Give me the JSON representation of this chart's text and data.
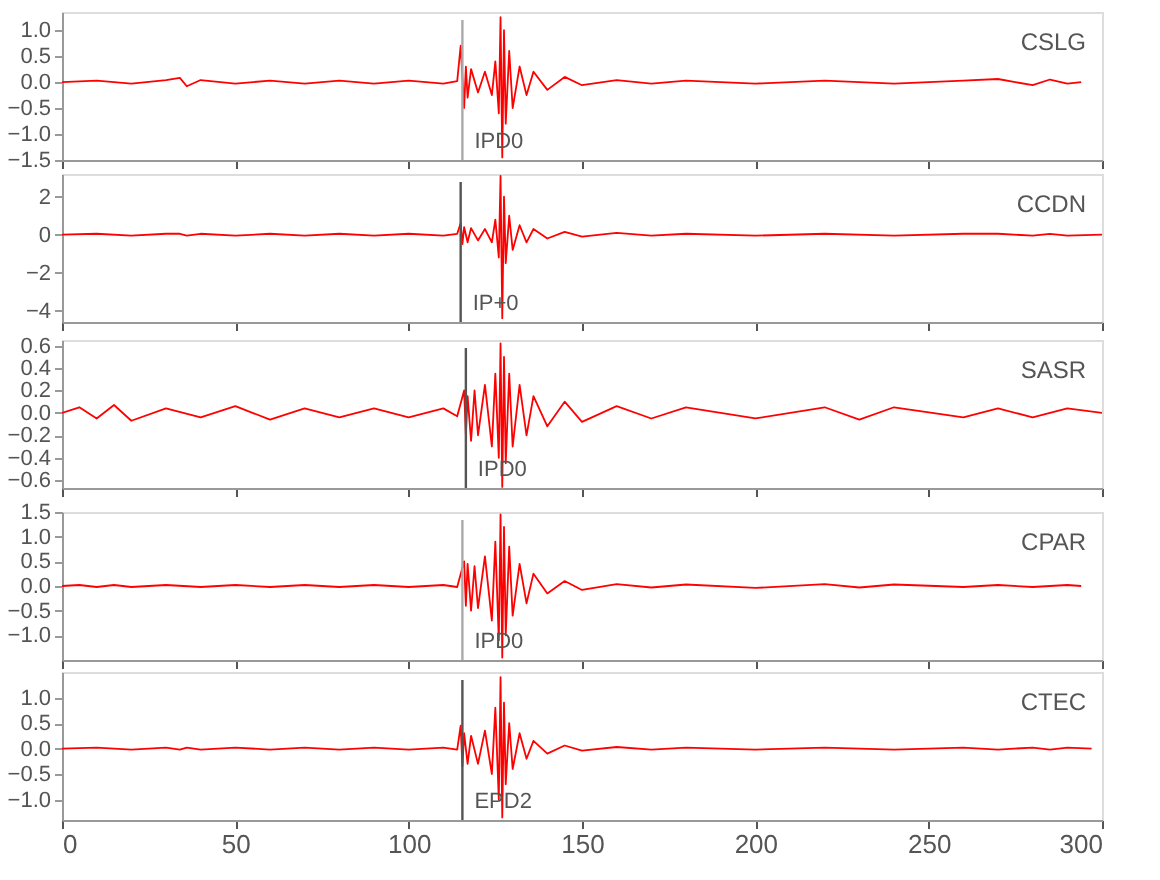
{
  "chart_data": [
    {
      "type": "line",
      "title": "CSLG",
      "xlim": [
        0,
        300
      ],
      "xticks": [
        0,
        50,
        100,
        150,
        200,
        250,
        300
      ],
      "ylim": [
        -1.5,
        1.35
      ],
      "yticks": [
        -1.5,
        {
          "value": -1,
          "label": "−1.0"
        },
        -0.5,
        {
          "value": 0,
          "label": "0.0"
        },
        0.5,
        {
          "value": 1,
          "label": "1.0"
        }
      ],
      "tick_labels": "y",
      "grid": false,
      "series": [
        {
          "color": "#ff0000",
          "x": [
            0,
            10,
            20,
            30,
            34,
            36,
            40,
            50,
            60,
            70,
            80,
            90,
            100,
            110,
            114,
            115,
            116,
            116.5,
            117,
            118,
            120,
            122,
            124,
            125,
            126,
            126.5,
            127,
            127.5,
            128,
            129,
            130,
            132,
            134,
            136,
            140,
            145,
            150,
            160,
            170,
            180,
            200,
            220,
            240,
            260,
            270,
            280,
            285,
            290,
            294
          ],
          "values": [
            0,
            0.03,
            -0.03,
            0.04,
            0.08,
            -0.08,
            0.04,
            -0.03,
            0.03,
            -0.03,
            0.03,
            -0.03,
            0.03,
            -0.03,
            0.02,
            0.7,
            -0.5,
            0.3,
            -0.3,
            0.25,
            -0.2,
            0.2,
            -0.25,
            0.4,
            -0.6,
            1.25,
            -1.45,
            1.0,
            -0.8,
            0.6,
            -0.5,
            0.3,
            -0.25,
            0.2,
            -0.15,
            0.1,
            -0.06,
            0.04,
            -0.03,
            0.03,
            -0.03,
            0.03,
            -0.03,
            0.03,
            0.06,
            -0.06,
            0.05,
            -0.03,
            0
          ]
        }
      ],
      "ref_lines": [
        {
          "axis": "x",
          "value": 115.5,
          "label": "IPD0",
          "color": "#aaaaaa"
        }
      ]
    },
    {
      "type": "line",
      "title": "CCDN",
      "xlim": [
        0,
        300
      ],
      "xticks": [
        0,
        50,
        100,
        150,
        200,
        250,
        300
      ],
      "ylim": [
        -4.6,
        3.2
      ],
      "yticks": [
        -4,
        -2,
        0,
        2
      ],
      "tick_labels": "y",
      "grid": false,
      "series": [
        {
          "color": "#ff0000",
          "x": [
            0,
            10,
            20,
            30,
            34,
            36,
            40,
            50,
            60,
            70,
            80,
            90,
            100,
            110,
            114,
            115,
            115.5,
            116,
            117,
            118,
            120,
            122,
            124,
            125,
            126,
            126.5,
            127,
            127.5,
            128,
            129,
            130,
            132,
            134,
            136,
            140,
            145,
            150,
            160,
            170,
            180,
            200,
            220,
            240,
            260,
            270,
            280,
            285,
            290,
            300
          ],
          "values": [
            0,
            0.05,
            -0.05,
            0.05,
            0.05,
            -0.05,
            0.05,
            -0.05,
            0.05,
            -0.05,
            0.05,
            -0.05,
            0.05,
            -0.05,
            0.05,
            0.6,
            -0.5,
            0.4,
            -0.4,
            0.35,
            -0.3,
            0.3,
            -0.4,
            0.8,
            -1.2,
            3.1,
            -4.4,
            2.0,
            -1.5,
            1.0,
            -0.8,
            0.5,
            -0.4,
            0.3,
            -0.2,
            0.15,
            -0.1,
            0.1,
            -0.05,
            0.05,
            -0.05,
            0.05,
            -0.05,
            0.05,
            0.05,
            -0.05,
            0.05,
            -0.05,
            0
          ]
        }
      ],
      "ref_lines": [
        {
          "axis": "x",
          "value": 115,
          "label": "IP+0",
          "color": "#555555"
        }
      ]
    },
    {
      "type": "line",
      "title": "SASR",
      "xlim": [
        0,
        300
      ],
      "xticks": [
        0,
        50,
        100,
        150,
        200,
        250,
        300
      ],
      "ylim": [
        -0.67,
        0.65
      ],
      "yticks": [
        -0.6,
        -0.4,
        -0.2,
        {
          "value": 0,
          "label": "0.0"
        },
        0.2,
        0.4,
        0.6
      ],
      "tick_labels": "y",
      "grid": false,
      "series": [
        {
          "color": "#ff0000",
          "x": [
            0,
            5,
            10,
            15,
            20,
            30,
            40,
            50,
            60,
            70,
            80,
            90,
            100,
            110,
            114,
            116,
            116.5,
            117,
            118,
            119,
            120,
            122,
            124,
            125,
            126,
            126.5,
            127,
            127.5,
            128,
            129,
            130,
            132,
            134,
            136,
            140,
            145,
            150,
            160,
            170,
            180,
            200,
            220,
            230,
            240,
            260,
            270,
            280,
            290,
            300
          ],
          "values": [
            0,
            0.05,
            -0.05,
            0.07,
            -0.07,
            0.04,
            -0.04,
            0.06,
            -0.06,
            0.04,
            -0.04,
            0.04,
            -0.04,
            0.04,
            -0.03,
            0.2,
            -0.2,
            0.15,
            -0.25,
            0.2,
            -0.2,
            0.25,
            -0.3,
            0.35,
            -0.4,
            0.62,
            -0.66,
            0.5,
            -0.45,
            0.35,
            -0.3,
            0.25,
            -0.2,
            0.15,
            -0.12,
            0.1,
            -0.08,
            0.06,
            -0.05,
            0.05,
            -0.05,
            0.05,
            -0.06,
            0.05,
            -0.04,
            0.04,
            -0.04,
            0.04,
            0
          ]
        }
      ],
      "ref_lines": [
        {
          "axis": "x",
          "value": 116.5,
          "label": "IPD0",
          "color": "#555555"
        }
      ]
    },
    {
      "type": "line",
      "title": "CPAR",
      "xlim": [
        0,
        300
      ],
      "xticks": [
        0,
        50,
        100,
        150,
        200,
        250,
        300
      ],
      "ylim": [
        -1.5,
        1.5
      ],
      "yticks": [
        {
          "value": -1,
          "label": "−1.0"
        },
        -0.5,
        {
          "value": 0,
          "label": "0.0"
        },
        0.5,
        {
          "value": 1,
          "label": "1.0"
        },
        1.5
      ],
      "tick_labels": "y",
      "grid": false,
      "series": [
        {
          "color": "#ff0000",
          "x": [
            0,
            5,
            10,
            15,
            20,
            30,
            40,
            50,
            60,
            70,
            80,
            90,
            100,
            110,
            114,
            116,
            116.5,
            117,
            118,
            119,
            120,
            122,
            124,
            125,
            126,
            126.5,
            127,
            127.5,
            128,
            129,
            130,
            132,
            134,
            136,
            140,
            145,
            150,
            160,
            170,
            180,
            200,
            220,
            230,
            240,
            260,
            270,
            280,
            290,
            294
          ],
          "values": [
            0,
            0.02,
            -0.02,
            0.02,
            -0.02,
            0.02,
            -0.02,
            0.02,
            -0.02,
            0.02,
            -0.02,
            0.02,
            -0.02,
            0.02,
            -0.02,
            0.5,
            -0.4,
            0.45,
            -0.5,
            0.4,
            -0.45,
            0.6,
            -0.7,
            0.9,
            -1.1,
            1.45,
            -1.45,
            1.2,
            -1.0,
            0.8,
            -0.6,
            0.45,
            -0.35,
            0.25,
            -0.15,
            0.1,
            -0.08,
            0.04,
            -0.03,
            0.03,
            -0.04,
            0.04,
            -0.03,
            0.03,
            -0.02,
            0.02,
            -0.02,
            0.02,
            0
          ]
        }
      ],
      "ref_lines": [
        {
          "axis": "x",
          "value": 115.5,
          "label": "IPD0",
          "color": "#aaaaaa"
        }
      ]
    },
    {
      "type": "line",
      "title": "CTEC",
      "xlim": [
        0,
        300
      ],
      "xticks": [
        0,
        50,
        100,
        150,
        200,
        250,
        300
      ],
      "ylim": [
        -1.4,
        1.5
      ],
      "yticks": [
        {
          "value": -1,
          "label": "−1.0"
        },
        -0.5,
        {
          "value": 0,
          "label": "0.0"
        },
        0.5,
        {
          "value": 1,
          "label": "1.0"
        }
      ],
      "grid": false,
      "series": [
        {
          "color": "#ff0000",
          "x": [
            0,
            10,
            20,
            30,
            34,
            36,
            40,
            50,
            60,
            70,
            80,
            90,
            100,
            110,
            114,
            115,
            115.5,
            116,
            117,
            118,
            120,
            122,
            124,
            125,
            126,
            126.5,
            127,
            127.5,
            128,
            129,
            130,
            132,
            134,
            136,
            140,
            145,
            150,
            160,
            170,
            180,
            200,
            220,
            240,
            260,
            270,
            280,
            285,
            290,
            297
          ],
          "values": [
            0,
            0.02,
            -0.02,
            0.02,
            -0.02,
            0.02,
            -0.02,
            0.02,
            -0.02,
            0.02,
            -0.02,
            0.02,
            -0.02,
            0.02,
            -0.02,
            0.45,
            -0.35,
            0.3,
            -0.3,
            0.25,
            -0.3,
            0.35,
            -0.5,
            0.8,
            -1.0,
            1.4,
            -1.35,
            0.9,
            -0.7,
            0.5,
            -0.4,
            0.3,
            -0.2,
            0.15,
            -0.1,
            0.06,
            -0.04,
            0.03,
            -0.02,
            0.02,
            -0.02,
            0.02,
            -0.02,
            0.02,
            -0.02,
            0.02,
            -0.02,
            0.02,
            0
          ]
        }
      ],
      "ref_lines": [
        {
          "axis": "x",
          "value": 115.5,
          "label": "EPD2",
          "color": "#555555"
        }
      ]
    }
  ]
}
